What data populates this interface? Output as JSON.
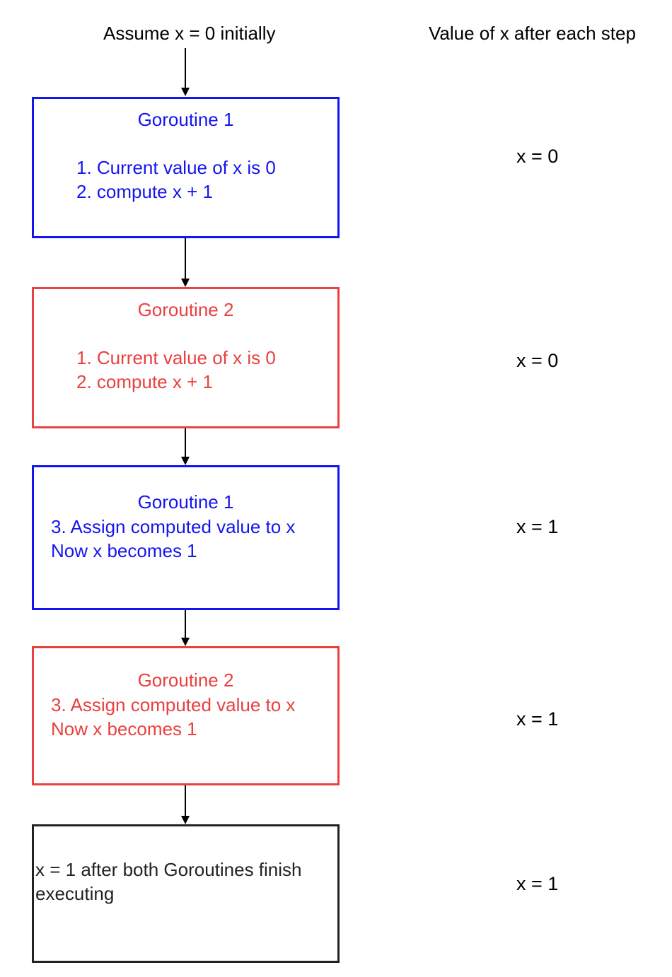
{
  "start_label": "Assume x = 0 initially",
  "column_header": "Value of x after each step",
  "colors": {
    "goroutine_1": "#1515f0",
    "goroutine_2": "#e8413f",
    "final": "#222222"
  },
  "steps": [
    {
      "title": "Goroutine 1",
      "lines": [
        "1. Current value of x is 0",
        "2. compute x + 1"
      ],
      "value_after": "x = 0"
    },
    {
      "title": "Goroutine 2",
      "lines": [
        "1. Current value of x is 0",
        "2. compute x + 1"
      ],
      "value_after": "x = 0"
    },
    {
      "title": "Goroutine 1",
      "lines": [
        "3. Assign computed value to x",
        "Now x becomes 1"
      ],
      "value_after": "x = 1"
    },
    {
      "title": "Goroutine 2",
      "lines": [
        "3. Assign computed value to x",
        "Now x becomes 1"
      ],
      "value_after": "x = 1"
    },
    {
      "title": "",
      "lines": [
        "x = 1 after both Goroutines finish",
        "executing"
      ],
      "value_after": "x = 1"
    }
  ]
}
